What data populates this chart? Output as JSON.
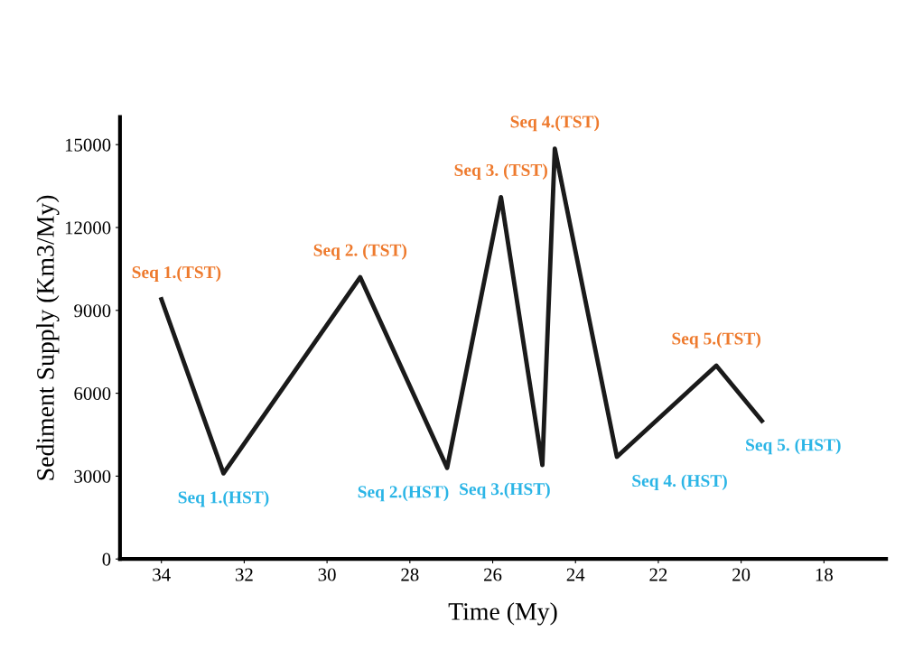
{
  "chart_data": {
    "type": "line",
    "xlabel": "Time (My)",
    "ylabel": "Sediment Supply (Km3/My)",
    "x": [
      34.0,
      32.5,
      29.2,
      27.1,
      25.8,
      24.8,
      24.5,
      23.0,
      20.6,
      19.5
    ],
    "series": [
      {
        "color": "#1a1a1a",
        "values": [
          9400,
          3100,
          10200,
          3300,
          13100,
          3400,
          14850,
          3700,
          7000,
          5000
        ]
      }
    ],
    "xlim": [
      35,
      16.5
    ],
    "ylim": [
      0,
      16000
    ],
    "xticks": [
      34,
      32,
      30,
      28,
      26,
      24,
      22,
      20,
      18
    ],
    "yticks": [
      0,
      3000,
      6000,
      9000,
      12000,
      15000
    ],
    "grid": false,
    "legend": false,
    "marker": "none",
    "line_style": "solid",
    "annotations": [
      {
        "text": "Seq 1.(TST)",
        "x": 34.0,
        "y": 9400
      },
      {
        "text": "Seq 1.(HST)",
        "x": 32.5,
        "y": 3100
      },
      {
        "text": "Seq 2. (TST)",
        "x": 29.2,
        "y": 10200
      },
      {
        "text": "Seq 2.(HST)",
        "x": 27.1,
        "y": 3300
      },
      {
        "text": "Seq 3. (TST)",
        "x": 25.8,
        "y": 13100
      },
      {
        "text": "Seq 3.(HST)",
        "x": 24.8,
        "y": 3400
      },
      {
        "text": "Seq 4.(TST)",
        "x": 24.5,
        "y": 14850
      },
      {
        "text": "Seq 4. (HST)",
        "x": 23.0,
        "y": 3700
      },
      {
        "text": "Seq 5.(TST)",
        "x": 20.6,
        "y": 7000
      },
      {
        "text": "Seq 5. (HST)",
        "x": 19.5,
        "y": 5000
      }
    ]
  }
}
